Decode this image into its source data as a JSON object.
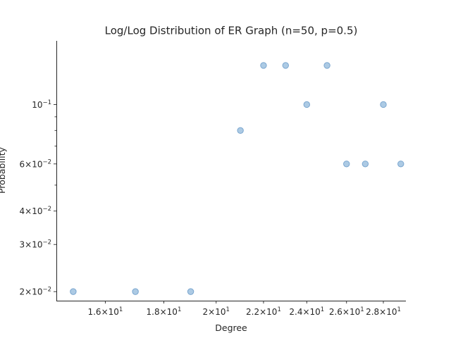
{
  "chart_data": {
    "type": "scatter",
    "title": "Log/Log Distribution of ER Graph (n=50, p=0.5)",
    "xlabel": "Degree",
    "ylabel": "Probability",
    "xscale": "log",
    "yscale": "log",
    "xlim": [
      14.5,
      29.3
    ],
    "ylim": [
      0.0185,
      0.173
    ],
    "grid": false,
    "legend": "none",
    "marker_color": "#9ec1df",
    "points": [
      {
        "x": 15,
        "y": 0.02
      },
      {
        "x": 17,
        "y": 0.02
      },
      {
        "x": 19,
        "y": 0.02
      },
      {
        "x": 21,
        "y": 0.08
      },
      {
        "x": 22,
        "y": 0.14
      },
      {
        "x": 23,
        "y": 0.14
      },
      {
        "x": 24,
        "y": 0.1
      },
      {
        "x": 25,
        "y": 0.14
      },
      {
        "x": 26,
        "y": 0.06
      },
      {
        "x": 27,
        "y": 0.06
      },
      {
        "x": 28,
        "y": 0.1
      },
      {
        "x": 29,
        "y": 0.06
      }
    ],
    "xticks": [
      {
        "value": 16,
        "mantissa": "1.6",
        "base": "10",
        "exp": "1"
      },
      {
        "value": 18,
        "mantissa": "1.8",
        "base": "10",
        "exp": "1"
      },
      {
        "value": 20,
        "mantissa": "2",
        "base": "10",
        "exp": "1"
      },
      {
        "value": 22,
        "mantissa": "2.2",
        "base": "10",
        "exp": "1"
      },
      {
        "value": 24,
        "mantissa": "2.4",
        "base": "10",
        "exp": "1"
      },
      {
        "value": 26,
        "mantissa": "2.6",
        "base": "10",
        "exp": "1"
      },
      {
        "value": 28,
        "mantissa": "2.8",
        "base": "10",
        "exp": "1"
      }
    ],
    "yticks": [
      {
        "value": 0.02,
        "mantissa": "2",
        "base": "10",
        "exp": "−2"
      },
      {
        "value": 0.03,
        "mantissa": "3",
        "base": "10",
        "exp": "−2"
      },
      {
        "value": 0.04,
        "mantissa": "4",
        "base": "10",
        "exp": "−2"
      },
      {
        "value": 0.06,
        "mantissa": "6",
        "base": "10",
        "exp": "−2"
      },
      {
        "value": 0.1,
        "mantissa": "",
        "base": "10",
        "exp": "−1"
      }
    ],
    "yminor_ticks": [
      0.05,
      0.07,
      0.08,
      0.09
    ]
  }
}
